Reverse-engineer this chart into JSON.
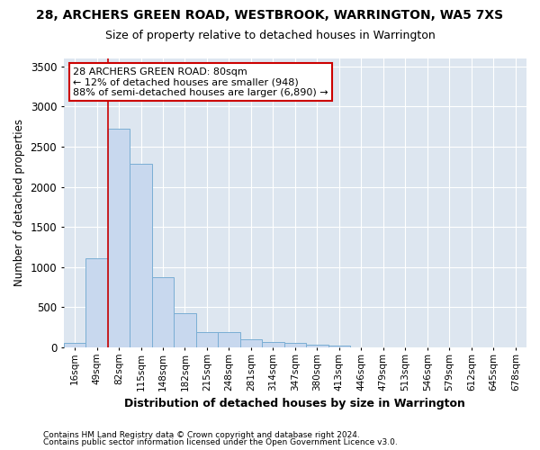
{
  "title_line1": "28, ARCHERS GREEN ROAD, WESTBROOK, WARRINGTON, WA5 7XS",
  "title_line2": "Size of property relative to detached houses in Warrington",
  "xlabel": "Distribution of detached houses by size in Warrington",
  "ylabel": "Number of detached properties",
  "categories": [
    "16sqm",
    "49sqm",
    "82sqm",
    "115sqm",
    "148sqm",
    "182sqm",
    "215sqm",
    "248sqm",
    "281sqm",
    "314sqm",
    "347sqm",
    "380sqm",
    "413sqm",
    "446sqm",
    "479sqm",
    "513sqm",
    "546sqm",
    "579sqm",
    "612sqm",
    "645sqm",
    "678sqm"
  ],
  "values": [
    55,
    1110,
    2730,
    2290,
    875,
    430,
    190,
    190,
    100,
    65,
    55,
    30,
    25,
    0,
    0,
    0,
    0,
    0,
    0,
    0,
    0
  ],
  "bar_color": "#c8d8ee",
  "bar_edge_color": "#7aaed4",
  "annotation_line1": "28 ARCHERS GREEN ROAD: 80sqm",
  "annotation_line2": "← 12% of detached houses are smaller (948)",
  "annotation_line3": "88% of semi-detached houses are larger (6,890) →",
  "annotation_box_facecolor": "#ffffff",
  "annotation_box_edgecolor": "#cc0000",
  "vline_x_index": 2,
  "vline_color": "#cc0000",
  "ylim": [
    0,
    3600
  ],
  "yticks": [
    0,
    500,
    1000,
    1500,
    2000,
    2500,
    3000,
    3500
  ],
  "background_color": "#dde6f0",
  "grid_color": "#ffffff",
  "figure_facecolor": "#ffffff",
  "footnote1": "Contains HM Land Registry data © Crown copyright and database right 2024.",
  "footnote2": "Contains public sector information licensed under the Open Government Licence v3.0."
}
